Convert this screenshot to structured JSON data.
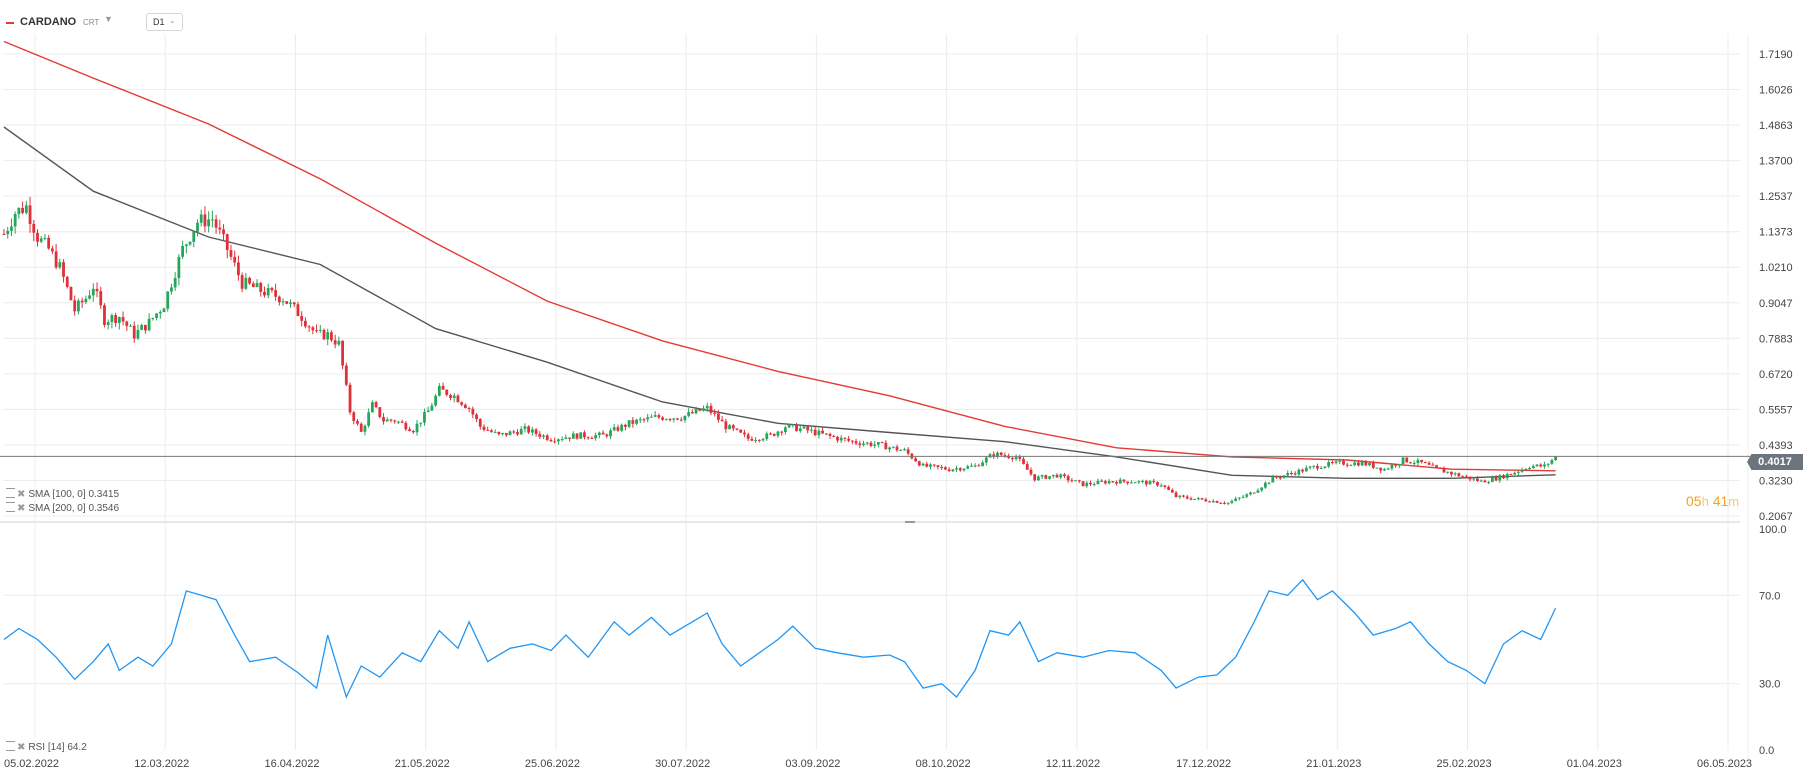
{
  "header": {
    "symbol": "CARDANO",
    "symbol_sub": "CRT",
    "timeframe": "D1"
  },
  "indicators": {
    "sma100_label": "SMA [100, 0]",
    "sma100_value": "0.3415",
    "sma200_label": "SMA [200, 0]",
    "sma200_value": "0.3546",
    "rsi_label": "RSI [14]",
    "rsi_value": "64.2"
  },
  "timer": {
    "hours": "05",
    "h": "h",
    "minutes": "41",
    "m": "m"
  },
  "current_price": "0.4017",
  "colors": {
    "up": "#26a65b",
    "down": "#e0303a",
    "sma100": "#555555",
    "sma200": "#e53935",
    "rsi": "#2196f3",
    "price_line": "#777777",
    "grid": "#ececec"
  },
  "chart_data": [
    {
      "type": "candlestick",
      "title": "CARDANO",
      "price_axis_ticks": [
        "1.7190",
        "1.6026",
        "1.4863",
        "1.3700",
        "1.2537",
        "1.1373",
        "1.0210",
        "0.9047",
        "0.7883",
        "0.6720",
        "0.5557",
        "0.4393",
        "0.3230",
        "0.2067"
      ],
      "ylim": [
        0.2067,
        1.719
      ],
      "x_tick_labels": [
        "05.02.2022",
        "12.03.2022",
        "16.04.2022",
        "21.05.2022",
        "25.06.2022",
        "30.07.2022",
        "03.09.2022",
        "08.10.2022",
        "12.11.2022",
        "17.12.2022",
        "21.01.2023",
        "25.02.2023",
        "01.04.2023",
        "06.05.2023"
      ],
      "close_path": [
        [
          "2022-02-05",
          1.13
        ],
        [
          "2022-02-08",
          1.2
        ],
        [
          "2022-02-11",
          1.22
        ],
        [
          "2022-02-14",
          1.12
        ],
        [
          "2022-02-17",
          1.08
        ],
        [
          "2022-02-20",
          1.02
        ],
        [
          "2022-02-24",
          0.88
        ],
        [
          "2022-02-27",
          0.92
        ],
        [
          "2022-03-01",
          0.96
        ],
        [
          "2022-03-04",
          0.85
        ],
        [
          "2022-03-08",
          0.86
        ],
        [
          "2022-03-12",
          0.8
        ],
        [
          "2022-03-16",
          0.84
        ],
        [
          "2022-03-20",
          0.9
        ],
        [
          "2022-03-25",
          1.08
        ],
        [
          "2022-03-29",
          1.17
        ],
        [
          "2022-04-02",
          1.18
        ],
        [
          "2022-04-06",
          1.08
        ],
        [
          "2022-04-10",
          0.97
        ],
        [
          "2022-04-16",
          0.94
        ],
        [
          "2022-04-21",
          0.92
        ],
        [
          "2022-04-26",
          0.86
        ],
        [
          "2022-04-30",
          0.8
        ],
        [
          "2022-05-03",
          0.8
        ],
        [
          "2022-05-06",
          0.77
        ],
        [
          "2022-05-09",
          0.55
        ],
        [
          "2022-05-12",
          0.48
        ],
        [
          "2022-05-15",
          0.57
        ],
        [
          "2022-05-18",
          0.52
        ],
        [
          "2022-05-21",
          0.52
        ],
        [
          "2022-05-26",
          0.49
        ],
        [
          "2022-05-30",
          0.55
        ],
        [
          "2022-06-02",
          0.62
        ],
        [
          "2022-06-06",
          0.6
        ],
        [
          "2022-06-10",
          0.56
        ],
        [
          "2022-06-13",
          0.5
        ],
        [
          "2022-06-18",
          0.47
        ],
        [
          "2022-06-25",
          0.49
        ],
        [
          "2022-07-02",
          0.46
        ],
        [
          "2022-07-09",
          0.47
        ],
        [
          "2022-07-16",
          0.47
        ],
        [
          "2022-07-23",
          0.51
        ],
        [
          "2022-07-30",
          0.53
        ],
        [
          "2022-08-06",
          0.53
        ],
        [
          "2022-08-13",
          0.56
        ],
        [
          "2022-08-18",
          0.5
        ],
        [
          "2022-08-24",
          0.46
        ],
        [
          "2022-08-30",
          0.47
        ],
        [
          "2022-09-03",
          0.5
        ],
        [
          "2022-09-08",
          0.49
        ],
        [
          "2022-09-14",
          0.47
        ],
        [
          "2022-09-21",
          0.45
        ],
        [
          "2022-09-28",
          0.44
        ],
        [
          "2022-10-05",
          0.42
        ],
        [
          "2022-10-10",
          0.37
        ],
        [
          "2022-10-17",
          0.36
        ],
        [
          "2022-10-24",
          0.37
        ],
        [
          "2022-10-29",
          0.41
        ],
        [
          "2022-11-04",
          0.4
        ],
        [
          "2022-11-09",
          0.33
        ],
        [
          "2022-11-15",
          0.34
        ],
        [
          "2022-11-22",
          0.31
        ],
        [
          "2022-11-29",
          0.32
        ],
        [
          "2022-12-06",
          0.32
        ],
        [
          "2022-12-13",
          0.31
        ],
        [
          "2022-12-17",
          0.27
        ],
        [
          "2022-12-24",
          0.26
        ],
        [
          "2022-12-31",
          0.25
        ],
        [
          "2023-01-06",
          0.28
        ],
        [
          "2023-01-12",
          0.33
        ],
        [
          "2023-01-18",
          0.35
        ],
        [
          "2023-01-24",
          0.37
        ],
        [
          "2023-01-30",
          0.38
        ],
        [
          "2023-02-05",
          0.38
        ],
        [
          "2023-02-11",
          0.36
        ],
        [
          "2023-02-16",
          0.39
        ],
        [
          "2023-02-21",
          0.38
        ],
        [
          "2023-02-25",
          0.36
        ],
        [
          "2023-03-03",
          0.34
        ],
        [
          "2023-03-09",
          0.32
        ],
        [
          "2023-03-13",
          0.33
        ],
        [
          "2023-03-18",
          0.35
        ],
        [
          "2023-03-22",
          0.37
        ],
        [
          "2023-03-26",
          0.37
        ],
        [
          "2023-03-29",
          0.4
        ]
      ],
      "series": [
        {
          "name": "SMA [100, 0]",
          "points": [
            [
              "2022-02-05",
              1.48
            ],
            [
              "2022-03-01",
              1.27
            ],
            [
              "2022-04-01",
              1.12
            ],
            [
              "2022-05-01",
              1.03
            ],
            [
              "2022-06-01",
              0.82
            ],
            [
              "2022-07-01",
              0.71
            ],
            [
              "2022-08-01",
              0.58
            ],
            [
              "2022-09-01",
              0.51
            ],
            [
              "2022-10-01",
              0.48
            ],
            [
              "2022-11-01",
              0.45
            ],
            [
              "2022-12-01",
              0.4
            ],
            [
              "2023-01-01",
              0.34
            ],
            [
              "2023-02-01",
              0.33
            ],
            [
              "2023-03-01",
              0.33
            ],
            [
              "2023-03-29",
              0.3415
            ]
          ]
        },
        {
          "name": "SMA [200, 0]",
          "points": [
            [
              "2022-02-05",
              1.76
            ],
            [
              "2022-03-01",
              1.64
            ],
            [
              "2022-04-01",
              1.49
            ],
            [
              "2022-05-01",
              1.31
            ],
            [
              "2022-06-01",
              1.1
            ],
            [
              "2022-07-01",
              0.91
            ],
            [
              "2022-08-01",
              0.78
            ],
            [
              "2022-09-01",
              0.68
            ],
            [
              "2022-10-01",
              0.6
            ],
            [
              "2022-11-01",
              0.5
            ],
            [
              "2022-12-01",
              0.43
            ],
            [
              "2023-01-01",
              0.4
            ],
            [
              "2023-02-01",
              0.39
            ],
            [
              "2023-03-01",
              0.36
            ],
            [
              "2023-03-29",
              0.3546
            ]
          ]
        }
      ]
    },
    {
      "type": "line",
      "title": "RSI [14]",
      "y_tick_labels": [
        "100.0",
        "70.0",
        "30.0",
        "0.0"
      ],
      "ylim": [
        0,
        100
      ],
      "series": [
        {
          "name": "RSI [14]",
          "points": [
            [
              "2022-02-05",
              50
            ],
            [
              "2022-02-09",
              55
            ],
            [
              "2022-02-14",
              50
            ],
            [
              "2022-02-19",
              42
            ],
            [
              "2022-02-24",
              32
            ],
            [
              "2022-03-01",
              40
            ],
            [
              "2022-03-05",
              48
            ],
            [
              "2022-03-08",
              36
            ],
            [
              "2022-03-13",
              42
            ],
            [
              "2022-03-17",
              38
            ],
            [
              "2022-03-22",
              48
            ],
            [
              "2022-03-26",
              72
            ],
            [
              "2022-03-30",
              70
            ],
            [
              "2022-04-03",
              68
            ],
            [
              "2022-04-08",
              52
            ],
            [
              "2022-04-12",
              40
            ],
            [
              "2022-04-19",
              42
            ],
            [
              "2022-04-25",
              35
            ],
            [
              "2022-04-30",
              28
            ],
            [
              "2022-05-03",
              52
            ],
            [
              "2022-05-08",
              24
            ],
            [
              "2022-05-12",
              38
            ],
            [
              "2022-05-17",
              33
            ],
            [
              "2022-05-23",
              44
            ],
            [
              "2022-05-28",
              40
            ],
            [
              "2022-06-02",
              54
            ],
            [
              "2022-06-07",
              46
            ],
            [
              "2022-06-10",
              58
            ],
            [
              "2022-06-15",
              40
            ],
            [
              "2022-06-21",
              46
            ],
            [
              "2022-06-27",
              48
            ],
            [
              "2022-07-02",
              45
            ],
            [
              "2022-07-06",
              52
            ],
            [
              "2022-07-12",
              42
            ],
            [
              "2022-07-19",
              58
            ],
            [
              "2022-07-23",
              52
            ],
            [
              "2022-07-29",
              60
            ],
            [
              "2022-08-03",
              52
            ],
            [
              "2022-08-09",
              58
            ],
            [
              "2022-08-13",
              62
            ],
            [
              "2022-08-17",
              48
            ],
            [
              "2022-08-22",
              38
            ],
            [
              "2022-08-27",
              44
            ],
            [
              "2022-09-01",
              50
            ],
            [
              "2022-09-05",
              56
            ],
            [
              "2022-09-11",
              46
            ],
            [
              "2022-09-17",
              44
            ],
            [
              "2022-09-24",
              42
            ],
            [
              "2022-10-01",
              43
            ],
            [
              "2022-10-05",
              40
            ],
            [
              "2022-10-10",
              28
            ],
            [
              "2022-10-15",
              30
            ],
            [
              "2022-10-19",
              24
            ],
            [
              "2022-10-24",
              36
            ],
            [
              "2022-10-28",
              54
            ],
            [
              "2022-11-02",
              52
            ],
            [
              "2022-11-05",
              58
            ],
            [
              "2022-11-10",
              40
            ],
            [
              "2022-11-15",
              44
            ],
            [
              "2022-11-22",
              42
            ],
            [
              "2022-11-29",
              45
            ],
            [
              "2022-12-06",
              44
            ],
            [
              "2022-12-13",
              36
            ],
            [
              "2022-12-17",
              28
            ],
            [
              "2022-12-23",
              33
            ],
            [
              "2022-12-28",
              34
            ],
            [
              "2023-01-02",
              42
            ],
            [
              "2023-01-07",
              58
            ],
            [
              "2023-01-11",
              72
            ],
            [
              "2023-01-16",
              70
            ],
            [
              "2023-01-20",
              77
            ],
            [
              "2023-01-24",
              68
            ],
            [
              "2023-01-28",
              72
            ],
            [
              "2023-02-03",
              62
            ],
            [
              "2023-02-08",
              52
            ],
            [
              "2023-02-14",
              55
            ],
            [
              "2023-02-18",
              58
            ],
            [
              "2023-02-23",
              48
            ],
            [
              "2023-02-28",
              40
            ],
            [
              "2023-03-05",
              36
            ],
            [
              "2023-03-10",
              30
            ],
            [
              "2023-03-15",
              48
            ],
            [
              "2023-03-20",
              54
            ],
            [
              "2023-03-25",
              50
            ],
            [
              "2023-03-29",
              64.2
            ]
          ]
        }
      ]
    }
  ]
}
